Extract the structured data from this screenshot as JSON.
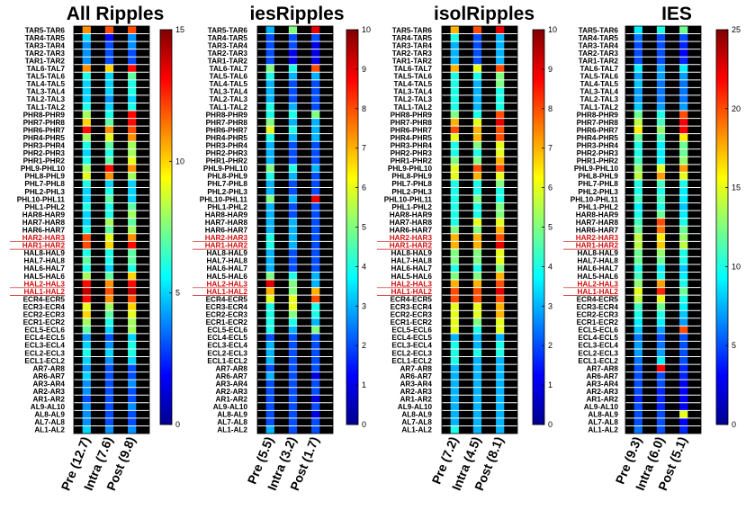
{
  "chart_data": {
    "type": "heatmap",
    "row_labels": [
      "TAR5-TAR6",
      "TAR4-TAR5",
      "TAR3-TAR4",
      "TAR2-TAR3",
      "TAR1-TAR2",
      "TAL6-TAL7",
      "TAL5-TAL6",
      "TAL4-TAL5",
      "TAL3-TAL4",
      "TAL2-TAL3",
      "TAL1-TAL2",
      "PHR8-PHR9",
      "PHR7-PHR8",
      "PHR6-PHR7",
      "PHR4-PHR5",
      "PHR3-PHR4",
      "PHR2-PHR3",
      "PHR1-PHR2",
      "PHL9-PHL10",
      "PHL8-PHL9",
      "PHL7-PHL8",
      "PHL2-PHL3",
      "PHL10-PHL11",
      "PHL1-PHL2",
      "HAR8-HAR9",
      "HAR7-HAR8",
      "HAR6-HAR7",
      "HAR2-HAR3",
      "HAR1-HAR2",
      "HAL8-HAL9",
      "HAL7-HAL8",
      "HAL6-HAL7",
      "HAL5-HAL6",
      "HAL2-HAL3",
      "HAL1-HAL2",
      "ECR4-ECR5",
      "ECR3-ECR4",
      "ECR2-ECR3",
      "ECR1-ECR2",
      "ECL5-ECL6",
      "ECL4-ECL5",
      "ECL3-ECL4",
      "ECL2-ECL3",
      "ECL1-ECL2",
      "AR7-AR8",
      "AR6-AR7",
      "AR3-AR4",
      "AR2-AR3",
      "AR1-AR2",
      "AL9-AL10",
      "AL8-AL9",
      "AL7-AL8",
      "AL1-AL2"
    ],
    "highlighted_rows": [
      "HAR2-HAR3",
      "HAR1-HAR2",
      "HAL2-HAL3",
      "HAL1-HAL2"
    ],
    "highlight_color": "#d01010",
    "panels": [
      {
        "title": "All Ripples",
        "columns": [
          "Pre (12.7)",
          "Intra (7.6)",
          "Post (9.8)"
        ],
        "cmax": 15,
        "cticks": [
          0,
          5,
          10,
          15
        ],
        "values": [
          [
            11,
            12,
            12
          ],
          [
            5,
            2,
            4
          ],
          [
            4,
            3,
            4
          ],
          [
            4,
            3,
            3
          ],
          [
            4,
            3,
            3
          ],
          [
            11,
            10,
            13
          ],
          [
            6,
            5,
            7
          ],
          [
            5,
            5,
            6
          ],
          [
            5,
            5,
            6
          ],
          [
            5,
            4,
            5
          ],
          [
            6,
            5,
            6
          ],
          [
            8,
            6,
            13
          ],
          [
            10,
            7,
            13
          ],
          [
            13,
            11,
            12
          ],
          [
            8,
            9,
            11
          ],
          [
            6,
            7,
            8
          ],
          [
            5,
            6,
            8
          ],
          [
            6,
            7,
            9
          ],
          [
            8,
            13,
            11
          ],
          [
            9,
            11,
            8
          ],
          [
            6,
            5,
            5
          ],
          [
            5,
            6,
            5
          ],
          [
            5,
            7,
            5
          ],
          [
            6,
            6,
            7
          ],
          [
            5,
            6,
            8
          ],
          [
            5,
            8,
            7
          ],
          [
            6,
            7,
            8
          ],
          [
            12,
            9,
            11
          ],
          [
            12,
            10,
            13
          ],
          [
            6,
            6,
            7
          ],
          [
            7,
            6,
            7
          ],
          [
            6,
            5,
            6
          ],
          [
            8,
            7,
            10
          ],
          [
            13,
            11,
            13
          ],
          [
            14,
            12,
            14
          ],
          [
            13,
            11,
            12
          ],
          [
            9,
            8,
            10
          ],
          [
            10,
            7,
            9
          ],
          [
            8,
            6,
            8
          ],
          [
            7,
            5,
            8
          ],
          [
            4,
            3,
            5
          ],
          [
            5,
            4,
            6
          ],
          [
            6,
            5,
            6
          ],
          [
            5,
            4,
            5
          ],
          [
            4,
            3,
            3
          ],
          [
            5,
            3,
            3
          ],
          [
            4,
            3,
            4
          ],
          [
            4,
            3,
            3
          ],
          [
            3,
            3,
            3
          ],
          [
            4,
            3,
            4
          ],
          [
            4,
            3,
            3
          ],
          [
            4,
            3,
            3
          ],
          [
            5,
            4,
            4
          ]
        ]
      },
      {
        "title": "iesRipples",
        "columns": [
          "Pre (5.5)",
          "Intra (3.2)",
          "Post (1.7)"
        ],
        "cmax": 10,
        "cticks": [
          0,
          1,
          2,
          3,
          4,
          5,
          6,
          7,
          8,
          9,
          10
        ],
        "values": [
          [
            3,
            5,
            9
          ],
          [
            2,
            2,
            2
          ],
          [
            2,
            2,
            1
          ],
          [
            2,
            1,
            1
          ],
          [
            2,
            1,
            1
          ],
          [
            5,
            4,
            8
          ],
          [
            4,
            3,
            3
          ],
          [
            3,
            2,
            2
          ],
          [
            3,
            2,
            2
          ],
          [
            3,
            2,
            2
          ],
          [
            4,
            3,
            2
          ],
          [
            4,
            4,
            5
          ],
          [
            5,
            3,
            3
          ],
          [
            6,
            4,
            3
          ],
          [
            4,
            3,
            3
          ],
          [
            3,
            2,
            2
          ],
          [
            3,
            2,
            2
          ],
          [
            3,
            2,
            2
          ],
          [
            5,
            4,
            3
          ],
          [
            4,
            3,
            2
          ],
          [
            3,
            2,
            2
          ],
          [
            3,
            2,
            2
          ],
          [
            5,
            3,
            9
          ],
          [
            3,
            2,
            2
          ],
          [
            3,
            2,
            2
          ],
          [
            3,
            3,
            2
          ],
          [
            3,
            3,
            2
          ],
          [
            4,
            3,
            2
          ],
          [
            4,
            3,
            2
          ],
          [
            3,
            2,
            2
          ],
          [
            3,
            2,
            2
          ],
          [
            3,
            2,
            2
          ],
          [
            5,
            4,
            3
          ],
          [
            9,
            5,
            3
          ],
          [
            7,
            5,
            7
          ],
          [
            6,
            6,
            8
          ],
          [
            4,
            6,
            4
          ],
          [
            4,
            5,
            4
          ],
          [
            4,
            4,
            3
          ],
          [
            4,
            3,
            5
          ],
          [
            2,
            2,
            2
          ],
          [
            3,
            2,
            2
          ],
          [
            3,
            2,
            2
          ],
          [
            3,
            2,
            2
          ],
          [
            2,
            2,
            2
          ],
          [
            3,
            2,
            1
          ],
          [
            2,
            2,
            2
          ],
          [
            2,
            2,
            2
          ],
          [
            2,
            2,
            1
          ],
          [
            2,
            2,
            2
          ],
          [
            2,
            2,
            1
          ],
          [
            2,
            2,
            2
          ],
          [
            3,
            2,
            2
          ]
        ]
      },
      {
        "title": "isolRipples",
        "columns": [
          "Pre (7.2)",
          "Intra (4.5)",
          "Post (8.1)"
        ],
        "cmax": 10,
        "cticks": [
          0,
          1,
          2,
          3,
          4,
          5,
          6,
          7,
          8,
          9,
          10
        ],
        "values": [
          [
            7,
            8,
            9
          ],
          [
            4,
            2,
            3
          ],
          [
            3,
            2,
            3
          ],
          [
            3,
            2,
            3
          ],
          [
            3,
            2,
            3
          ],
          [
            7,
            6,
            8
          ],
          [
            4,
            4,
            5
          ],
          [
            4,
            3,
            5
          ],
          [
            4,
            3,
            4
          ],
          [
            4,
            3,
            4
          ],
          [
            4,
            3,
            4
          ],
          [
            5,
            4,
            8
          ],
          [
            7,
            6,
            9
          ],
          [
            8,
            7,
            8
          ],
          [
            6,
            7,
            8
          ],
          [
            4,
            5,
            6
          ],
          [
            4,
            4,
            6
          ],
          [
            5,
            5,
            7
          ],
          [
            6,
            8,
            8
          ],
          [
            6,
            7,
            6
          ],
          [
            4,
            4,
            5
          ],
          [
            4,
            4,
            4
          ],
          [
            4,
            5,
            4
          ],
          [
            4,
            4,
            5
          ],
          [
            4,
            4,
            5
          ],
          [
            4,
            6,
            6
          ],
          [
            5,
            5,
            7
          ],
          [
            7,
            7,
            8
          ],
          [
            7,
            7,
            9
          ],
          [
            5,
            5,
            6
          ],
          [
            5,
            5,
            6
          ],
          [
            4,
            4,
            5
          ],
          [
            5,
            5,
            7
          ],
          [
            7,
            7,
            8
          ],
          [
            8,
            8,
            9
          ],
          [
            8,
            8,
            8
          ],
          [
            6,
            6,
            7
          ],
          [
            6,
            6,
            7
          ],
          [
            6,
            5,
            6
          ],
          [
            6,
            4,
            6
          ],
          [
            3,
            3,
            3
          ],
          [
            4,
            3,
            4
          ],
          [
            4,
            4,
            4
          ],
          [
            4,
            3,
            3
          ],
          [
            3,
            3,
            3
          ],
          [
            3,
            3,
            3
          ],
          [
            3,
            3,
            3
          ],
          [
            3,
            3,
            3
          ],
          [
            3,
            3,
            3
          ],
          [
            3,
            3,
            3
          ],
          [
            3,
            3,
            3
          ],
          [
            3,
            3,
            3
          ],
          [
            4,
            3,
            3
          ]
        ]
      },
      {
        "title": "IES",
        "columns": [
          "Pre (9.3)",
          "Intra (6.0)",
          "Post (5.1)"
        ],
        "cmax": 25,
        "cticks": [
          0,
          5,
          10,
          15,
          20,
          25
        ],
        "values": [
          [
            9,
            10,
            12
          ],
          [
            6,
            5,
            5
          ],
          [
            5,
            5,
            4
          ],
          [
            5,
            5,
            3
          ],
          [
            5,
            5,
            4
          ],
          [
            9,
            7,
            9
          ],
          [
            7,
            7,
            7
          ],
          [
            8,
            6,
            6
          ],
          [
            7,
            6,
            6
          ],
          [
            7,
            6,
            6
          ],
          [
            8,
            7,
            7
          ],
          [
            12,
            10,
            20
          ],
          [
            14,
            11,
            22
          ],
          [
            16,
            13,
            22
          ],
          [
            12,
            11,
            16
          ],
          [
            10,
            9,
            12
          ],
          [
            10,
            9,
            12
          ],
          [
            11,
            9,
            13
          ],
          [
            13,
            15,
            18
          ],
          [
            14,
            18,
            15
          ],
          [
            10,
            11,
            10
          ],
          [
            10,
            10,
            9
          ],
          [
            11,
            11,
            9
          ],
          [
            9,
            10,
            8
          ],
          [
            10,
            12,
            9
          ],
          [
            11,
            20,
            10
          ],
          [
            12,
            19,
            12
          ],
          [
            14,
            16,
            13
          ],
          [
            14,
            17,
            14
          ],
          [
            12,
            13,
            10
          ],
          [
            12,
            12,
            10
          ],
          [
            10,
            9,
            8
          ],
          [
            11,
            10,
            9
          ],
          [
            13,
            18,
            10
          ],
          [
            15,
            21,
            12
          ],
          [
            14,
            15,
            10
          ],
          [
            11,
            12,
            9
          ],
          [
            10,
            10,
            8
          ],
          [
            9,
            9,
            7
          ],
          [
            8,
            7,
            20
          ],
          [
            6,
            5,
            5
          ],
          [
            7,
            6,
            5
          ],
          [
            7,
            7,
            5
          ],
          [
            6,
            9,
            5
          ],
          [
            5,
            22,
            4
          ],
          [
            5,
            5,
            4
          ],
          [
            5,
            5,
            3
          ],
          [
            5,
            4,
            3
          ],
          [
            4,
            4,
            3
          ],
          [
            5,
            4,
            3
          ],
          [
            5,
            5,
            15
          ],
          [
            5,
            5,
            3
          ],
          [
            6,
            5,
            4
          ]
        ]
      }
    ]
  }
}
